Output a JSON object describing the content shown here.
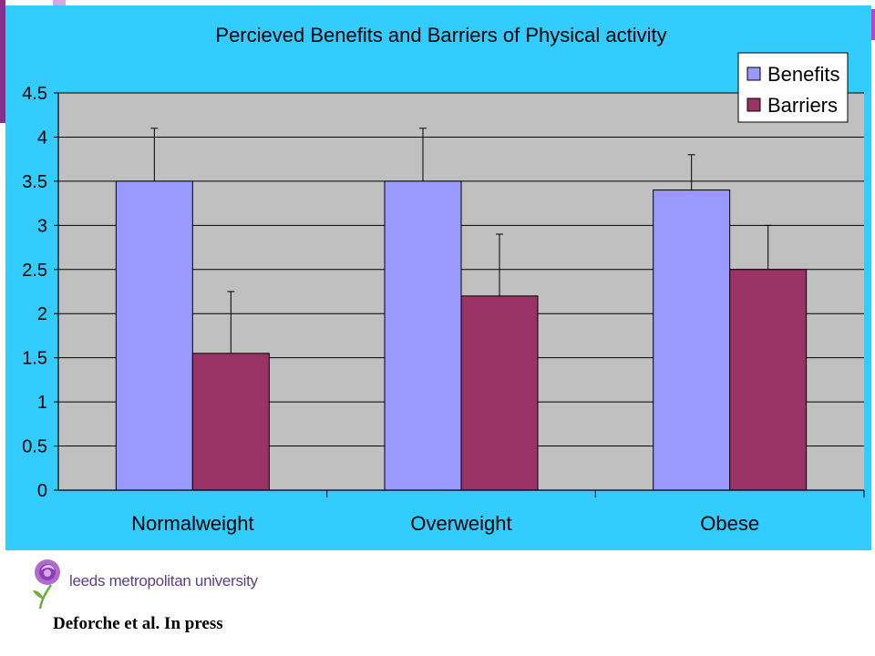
{
  "chart_data": {
    "type": "bar",
    "title": "Percieved Benefits and Barriers of Physical activity",
    "categories": [
      "Normalweight",
      "Overweight",
      "Obese"
    ],
    "series": [
      {
        "name": "Benefits",
        "values": [
          3.5,
          3.5,
          3.4
        ],
        "error_upper": [
          4.1,
          4.1,
          3.8
        ],
        "color": "#9999ff"
      },
      {
        "name": "Barriers",
        "values": [
          1.55,
          2.2,
          2.5
        ],
        "error_upper": [
          2.25,
          2.9,
          3.0
        ],
        "color": "#993366"
      }
    ],
    "yticks": [
      "0",
      "0.5",
      "1",
      "1.5",
      "2",
      "2.5",
      "3",
      "3.5",
      "4",
      "4.5"
    ],
    "ylim": [
      0,
      4.5
    ],
    "xlabel": "",
    "ylabel": "",
    "grid": true,
    "legend_position": "top-right",
    "plot_background": "#c0c0c0",
    "panel_background": "#33ccff"
  },
  "logo": {
    "text": "leeds metropolitan university",
    "icon": "rose-icon"
  },
  "citation": "Deforche et al. In press"
}
